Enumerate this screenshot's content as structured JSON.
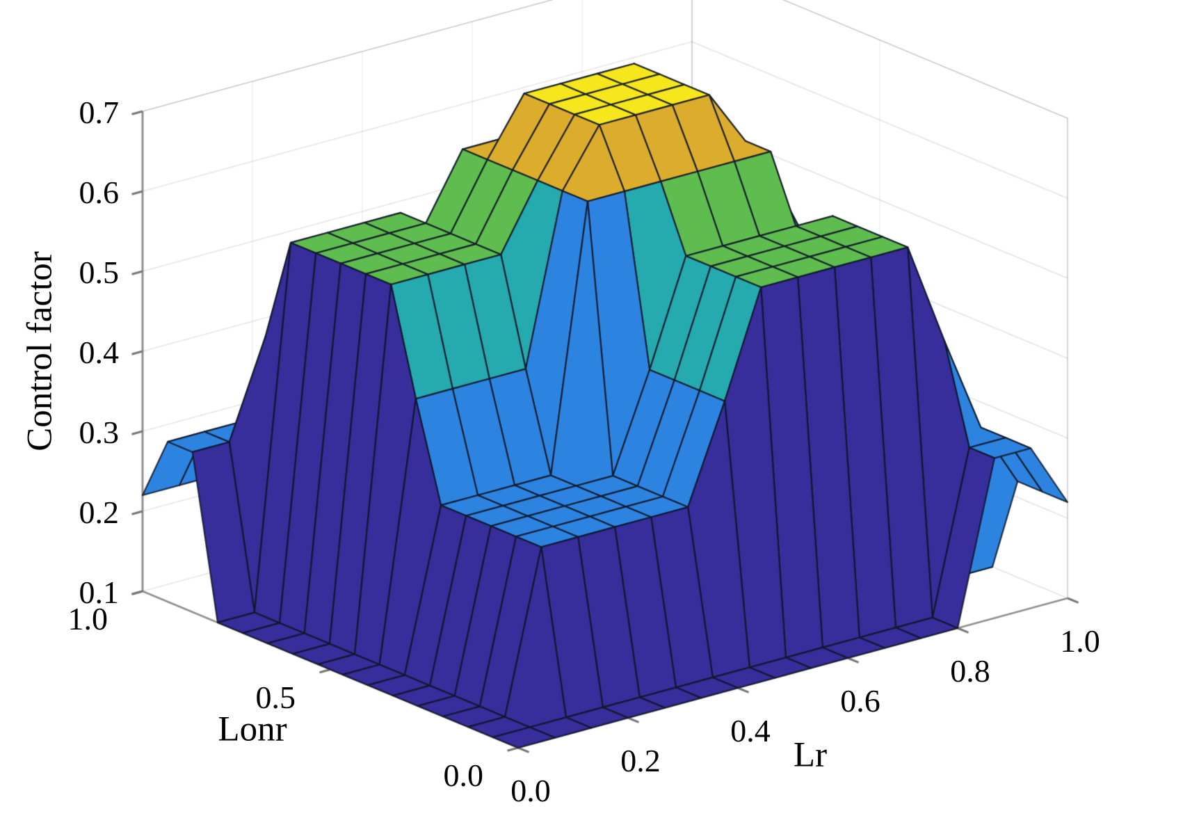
{
  "figure": {
    "background": "#ffffff",
    "mesh_color": "rgba(15,22,40,0.85)",
    "axis_color": "#8f8f8f",
    "grid_color": "rgba(0,0,0,0.10)"
  },
  "chart_data": {
    "type": "surface",
    "title": "",
    "xlabel": "Lr",
    "ylabel": "Lonr",
    "zlabel": "Control factor",
    "xlim": [
      0,
      1
    ],
    "ylim": [
      0,
      1
    ],
    "zlim": [
      0.1,
      0.7
    ],
    "x_tick_values": [
      0,
      0.2,
      0.4,
      0.6,
      0.8,
      1.0
    ],
    "x_tick_labels": [
      "0.0",
      "0.2",
      "0.4",
      "0.6",
      "0.8",
      "1.0"
    ],
    "y_tick_values": [
      0,
      0.5,
      1.0
    ],
    "y_tick_labels": [
      "0.0",
      "0.5",
      "1.0"
    ],
    "z_tick_values": [
      0.1,
      0.2,
      0.3,
      0.4,
      0.5,
      0.6,
      0.7
    ],
    "z_tick_labels": [
      "0.1",
      "0.2",
      "0.3",
      "0.4",
      "0.5",
      "0.6",
      "0.7"
    ],
    "grid_on": true,
    "legend": null,
    "x_values": [
      0,
      0.067,
      0.133,
      0.2,
      0.267,
      0.333,
      0.4,
      0.467,
      0.533,
      0.6,
      0.667,
      0.733,
      0.8,
      0.867,
      0.933,
      1.0
    ],
    "y_values": [
      0,
      0.067,
      0.133,
      0.2,
      0.267,
      0.333,
      0.4,
      0.467,
      0.533,
      0.6,
      0.667,
      0.733,
      0.8,
      0.867,
      0.933,
      1.0
    ],
    "z_grid": [
      [
        0.1,
        0.1,
        0.1,
        0.1,
        0.1,
        0.1,
        0.1,
        0.1,
        0.1,
        0.1,
        0.1,
        0.1,
        0.1,
        0.3,
        0.3,
        0.22
      ],
      [
        0.1,
        0.1,
        0.1,
        0.1,
        0.1,
        0.1,
        0.1,
        0.1,
        0.1,
        0.1,
        0.1,
        0.1,
        0.1,
        0.3,
        0.3,
        0.22
      ],
      [
        0.1,
        0.1,
        0.3,
        0.3,
        0.3,
        0.3,
        0.3,
        0.42,
        0.55,
        0.55,
        0.55,
        0.55,
        0.55,
        0.42,
        0.3,
        0.22
      ],
      [
        0.1,
        0.1,
        0.3,
        0.3,
        0.3,
        0.3,
        0.3,
        0.42,
        0.55,
        0.55,
        0.55,
        0.55,
        0.55,
        0.42,
        0.1,
        0.1
      ],
      [
        0.1,
        0.1,
        0.3,
        0.3,
        0.3,
        0.3,
        0.3,
        0.42,
        0.55,
        0.55,
        0.55,
        0.55,
        0.55,
        0.42,
        0.1,
        0.1
      ],
      [
        0.1,
        0.1,
        0.3,
        0.3,
        0.3,
        0.3,
        0.3,
        0.42,
        0.55,
        0.55,
        0.55,
        0.55,
        0.55,
        0.42,
        0.1,
        0.1
      ],
      [
        0.1,
        0.1,
        0.3,
        0.3,
        0.3,
        0.3,
        0.63,
        0.63,
        0.63,
        0.63,
        0.63,
        0.63,
        0.45,
        0.45,
        0.1,
        0.1
      ],
      [
        0.1,
        0.1,
        0.42,
        0.42,
        0.42,
        0.42,
        0.63,
        0.7,
        0.7,
        0.7,
        0.7,
        0.63,
        0.55,
        0.45,
        0.1,
        0.1
      ],
      [
        0.1,
        0.1,
        0.55,
        0.55,
        0.55,
        0.55,
        0.63,
        0.7,
        0.7,
        0.7,
        0.7,
        0.63,
        0.55,
        0.45,
        0.1,
        0.1
      ],
      [
        0.1,
        0.1,
        0.55,
        0.55,
        0.55,
        0.55,
        0.63,
        0.7,
        0.7,
        0.7,
        0.7,
        0.63,
        0.55,
        0.45,
        0.1,
        0.1
      ],
      [
        0.1,
        0.1,
        0.55,
        0.55,
        0.55,
        0.55,
        0.63,
        0.7,
        0.7,
        0.7,
        0.7,
        0.63,
        0.55,
        0.45,
        0.1,
        0.1
      ],
      [
        0.1,
        0.1,
        0.55,
        0.55,
        0.55,
        0.55,
        0.63,
        0.63,
        0.63,
        0.63,
        0.63,
        0.63,
        0.55,
        0.45,
        0.1,
        0.1
      ],
      [
        0.1,
        0.1,
        0.55,
        0.55,
        0.55,
        0.55,
        0.45,
        0.55,
        0.55,
        0.55,
        0.55,
        0.55,
        0.45,
        0.45,
        0.1,
        0.1
      ],
      [
        0.3,
        0.3,
        0.42,
        0.42,
        0.42,
        0.42,
        0.45,
        0.45,
        0.45,
        0.45,
        0.45,
        0.45,
        0.45,
        0.45,
        0.1,
        0.1
      ],
      [
        0.3,
        0.3,
        0.3,
        0.1,
        0.1,
        0.1,
        0.1,
        0.1,
        0.1,
        0.1,
        0.1,
        0.1,
        0.1,
        0.1,
        0.3,
        0.3
      ],
      [
        0.22,
        0.22,
        0.22,
        0.1,
        0.1,
        0.1,
        0.1,
        0.1,
        0.1,
        0.1,
        0.1,
        0.1,
        0.1,
        0.1,
        0.3,
        0.3
      ]
    ],
    "colormap": [
      {
        "z": 0.1,
        "color": "#372d9b"
      },
      {
        "z": 0.3,
        "color": "#2d84e0"
      },
      {
        "z": 0.45,
        "color": "#23b3a4"
      },
      {
        "z": 0.55,
        "color": "#5fbc4e"
      },
      {
        "z": 0.63,
        "color": "#dcac2d"
      },
      {
        "z": 0.7,
        "color": "#f5e71b"
      }
    ]
  }
}
